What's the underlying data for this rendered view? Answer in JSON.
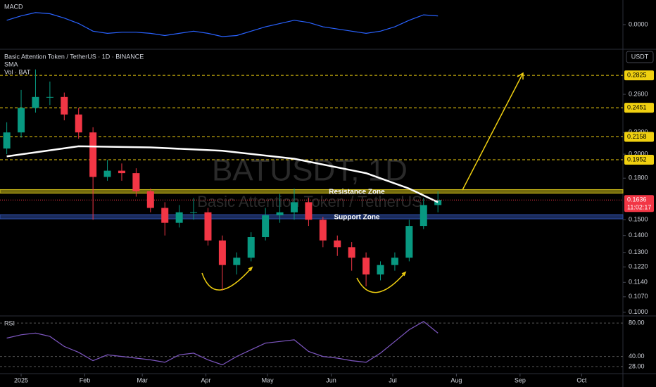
{
  "chart_data": [
    {
      "type": "candlestick",
      "title": "Basic Attention Token / TetherUS · 1D · BINANCE",
      "indicator_labels": [
        "SMA",
        "Vol · BAT"
      ],
      "watermark": "BATUSDT, 1D",
      "watermark_subtitle": "Basic Attention Token / TetherUS",
      "currency": "USDT",
      "log_scale": true,
      "up_color": "#089981",
      "down_color": "#f23645",
      "x": [
        -7,
        0,
        7,
        14,
        21,
        28,
        35,
        42,
        49,
        56,
        63,
        70,
        77,
        84,
        91,
        98,
        105,
        112,
        119,
        126,
        133,
        140,
        147,
        154,
        161,
        168,
        175,
        182,
        189,
        196,
        203
      ],
      "open": [
        0.205,
        0.22,
        0.245,
        0.257,
        0.257,
        0.238,
        0.22,
        0.181,
        0.186,
        0.184,
        0.17,
        0.158,
        0.148,
        0.155,
        0.155,
        0.137,
        0.123,
        0.127,
        0.139,
        0.153,
        0.155,
        0.162,
        0.15,
        0.137,
        0.133,
        0.127,
        0.118,
        0.123,
        0.127,
        0.146,
        0.16
      ],
      "high": [
        0.23,
        0.265,
        0.29,
        0.275,
        0.262,
        0.245,
        0.225,
        0.195,
        0.192,
        0.188,
        0.172,
        0.162,
        0.16,
        0.165,
        0.158,
        0.14,
        0.13,
        0.142,
        0.158,
        0.168,
        0.172,
        0.165,
        0.152,
        0.14,
        0.136,
        0.13,
        0.125,
        0.13,
        0.15,
        0.165,
        0.17
      ],
      "low": [
        0.2,
        0.215,
        0.24,
        0.248,
        0.232,
        0.214,
        0.15,
        0.178,
        0.178,
        0.166,
        0.155,
        0.14,
        0.145,
        0.15,
        0.134,
        0.11,
        0.118,
        0.125,
        0.137,
        0.148,
        0.15,
        0.146,
        0.133,
        0.128,
        0.12,
        0.112,
        0.115,
        0.12,
        0.125,
        0.144,
        0.155
      ],
      "close": [
        0.22,
        0.245,
        0.257,
        0.257,
        0.238,
        0.22,
        0.181,
        0.186,
        0.184,
        0.17,
        0.158,
        0.148,
        0.155,
        0.155,
        0.137,
        0.123,
        0.127,
        0.139,
        0.153,
        0.155,
        0.162,
        0.15,
        0.137,
        0.133,
        0.127,
        0.118,
        0.123,
        0.127,
        0.146,
        0.16,
        0.1636
      ],
      "sma": {
        "color": "#ffffff",
        "x": [
          -7,
          28,
          63,
          98,
          133,
          168,
          189,
          203
        ],
        "values": [
          0.198,
          0.207,
          0.206,
          0.203,
          0.196,
          0.184,
          0.172,
          0.162
        ]
      },
      "last_price": {
        "value": 0.1636,
        "label": "0.1636"
      },
      "countdown": "11:02:17",
      "levels": [
        {
          "value": 0.2825,
          "label": "0.2825"
        },
        {
          "value": 0.2451,
          "label": "0.2451"
        },
        {
          "value": 0.2158,
          "label": "0.2158"
        },
        {
          "value": 0.1952,
          "label": "0.1952"
        }
      ],
      "zones": [
        {
          "name": "Resistance Zone",
          "range": [
            0.1686,
            0.1712
          ],
          "color": "#d4c21a"
        },
        {
          "name": "Support Zone",
          "range": [
            0.1506,
            0.1534
          ],
          "color": "#2f4fa8"
        }
      ],
      "xlim": [
        -10.3,
        293.1
      ],
      "xticks": [
        {
          "value": 0,
          "label": "2025"
        },
        {
          "value": 31,
          "label": "Feb"
        },
        {
          "value": 59,
          "label": "Mar"
        },
        {
          "value": 90,
          "label": "Apr"
        },
        {
          "value": 120,
          "label": "May"
        },
        {
          "value": 151,
          "label": "Jun"
        },
        {
          "value": 181,
          "label": "Jul"
        },
        {
          "value": 212,
          "label": "Aug"
        },
        {
          "value": 243,
          "label": "Sep"
        },
        {
          "value": 273,
          "label": "Oct"
        }
      ],
      "ylim": [
        0.099,
        0.311
      ],
      "yticks": [
        {
          "value": 0.26,
          "label": "0.2600"
        },
        {
          "value": 0.22,
          "label": "0.2200"
        },
        {
          "value": 0.2,
          "label": "0.2000"
        },
        {
          "value": 0.18,
          "label": "0.1800"
        },
        {
          "value": 0.15,
          "label": "0.1500"
        },
        {
          "value": 0.14,
          "label": "0.1400"
        },
        {
          "value": 0.13,
          "label": "0.1300"
        },
        {
          "value": 0.122,
          "label": "0.1220"
        },
        {
          "value": 0.114,
          "label": "0.1140"
        },
        {
          "value": 0.107,
          "label": "0.1070"
        },
        {
          "value": 0.1,
          "label": "0.1000"
        }
      ]
    },
    {
      "type": "line",
      "title": "MACD",
      "color": "#2962ff",
      "x": [
        -7,
        0,
        7,
        14,
        21,
        28,
        35,
        42,
        49,
        56,
        63,
        70,
        77,
        84,
        91,
        98,
        105,
        112,
        119,
        126,
        133,
        140,
        147,
        154,
        161,
        168,
        175,
        182,
        189,
        196,
        203
      ],
      "values": [
        0.004,
        0.008,
        0.011,
        0.01,
        0.006,
        0.001,
        -0.006,
        -0.008,
        -0.007,
        -0.007,
        -0.008,
        -0.01,
        -0.008,
        -0.006,
        -0.008,
        -0.011,
        -0.01,
        -0.006,
        -0.002,
        0.001,
        0.004,
        0.002,
        -0.002,
        -0.004,
        -0.006,
        -0.008,
        -0.006,
        -0.002,
        0.004,
        0.009,
        0.008
      ],
      "ylim": [
        -0.02,
        0.02
      ],
      "yticks": [
        {
          "value": 0,
          "label": "0.0000"
        }
      ]
    },
    {
      "type": "line",
      "title": "RSI",
      "color": "#7e57c2",
      "x": [
        -7,
        0,
        7,
        14,
        21,
        28,
        35,
        42,
        49,
        56,
        63,
        70,
        77,
        84,
        91,
        98,
        105,
        112,
        119,
        126,
        133,
        140,
        147,
        154,
        161,
        168,
        175,
        182,
        189,
        196,
        203
      ],
      "values": [
        62,
        66,
        68,
        64,
        52,
        45,
        35,
        42,
        40,
        38,
        36,
        33,
        42,
        44,
        36,
        30,
        40,
        48,
        56,
        58,
        60,
        46,
        40,
        38,
        35,
        33,
        44,
        58,
        72,
        82,
        68
      ],
      "ylim": [
        22,
        86
      ],
      "yticks": [
        {
          "value": 80,
          "label": "80.00"
        },
        {
          "value": 40,
          "label": "40.00"
        },
        {
          "value": 28,
          "label": "28.00"
        }
      ]
    }
  ]
}
